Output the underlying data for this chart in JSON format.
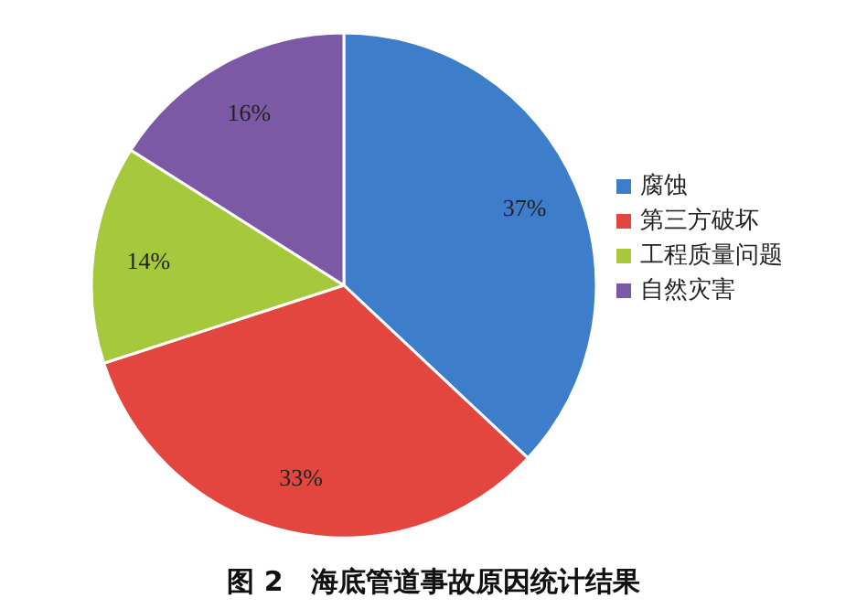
{
  "chart_data": {
    "type": "pie",
    "title": "图 2　海底管道事故原因统计结果",
    "categories": [
      "腐蚀",
      "第三方破坏",
      "工程质量问题",
      "自然灾害"
    ],
    "values": [
      37,
      33,
      14,
      16
    ],
    "value_labels": [
      "37%",
      "33%",
      "14%",
      "16%"
    ],
    "colors": [
      "#3d7dca",
      "#e2463f",
      "#a5c83d",
      "#7c59a5"
    ],
    "legend": "right"
  }
}
